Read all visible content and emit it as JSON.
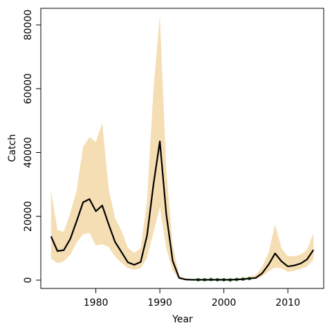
{
  "chart_data": {
    "type": "line",
    "title": "",
    "xlabel": "Year",
    "ylabel": "Catch",
    "xlim": [
      1971.4,
      2015.6
    ],
    "ylim": [
      -2600,
      85200
    ],
    "xticks": [
      1980,
      1990,
      2000,
      2010
    ],
    "yticks": [
      0,
      20000,
      40000,
      60000,
      80000
    ],
    "grid": false,
    "band_color": "#f5deb3",
    "line_color": "#000000",
    "point_color": "#2e8b2e",
    "series": [
      {
        "role": "median",
        "x": [
          1973,
          1974,
          1975,
          1976,
          1977,
          1978,
          1979,
          1980,
          1981,
          1982,
          1983,
          1984,
          1985,
          1986,
          1987,
          1988,
          1989,
          1990,
          1991,
          1992,
          1993,
          1994,
          1995,
          1996,
          1997,
          1998,
          1999,
          2000,
          2001,
          2002,
          2003,
          2004,
          2005,
          2006,
          2007,
          2008,
          2009,
          2010,
          2011,
          2012,
          2013,
          2014
        ],
        "y": [
          13700,
          9100,
          9400,
          12900,
          18500,
          24400,
          25400,
          21600,
          23400,
          17500,
          12000,
          8800,
          5600,
          4800,
          5700,
          14000,
          30000,
          43500,
          20700,
          6100,
          700,
          200,
          100,
          100,
          100,
          100,
          100,
          100,
          100,
          200,
          300,
          500,
          700,
          2200,
          4900,
          8400,
          5900,
          4300,
          4600,
          5200,
          6500,
          9500
        ]
      },
      {
        "role": "band-upper",
        "x": [
          1973,
          1974,
          1975,
          1976,
          1977,
          1978,
          1979,
          1980,
          1981,
          1982,
          1983,
          1984,
          1985,
          1986,
          1987,
          1988,
          1989,
          1990,
          1991,
          1992,
          1993,
          1994,
          1995,
          1996,
          1997,
          1998,
          1999,
          2000,
          2001,
          2002,
          2003,
          2004,
          2005,
          2006,
          2007,
          2008,
          2009,
          2010,
          2011,
          2012,
          2013,
          2014
        ],
        "y": [
          28000,
          15700,
          15200,
          21000,
          28000,
          41800,
          44800,
          43300,
          49200,
          28600,
          19500,
          15500,
          10200,
          8500,
          10000,
          25000,
          60000,
          83000,
          35000,
          11000,
          1500,
          600,
          400,
          400,
          400,
          400,
          400,
          400,
          400,
          500,
          700,
          1100,
          1600,
          4200,
          8700,
          17500,
          10000,
          7500,
          7500,
          8000,
          9500,
          14800
        ]
      },
      {
        "role": "band-lower",
        "x": [
          1973,
          1974,
          1975,
          1976,
          1977,
          1978,
          1979,
          1980,
          1981,
          1982,
          1983,
          1984,
          1985,
          1986,
          1987,
          1988,
          1989,
          1990,
          1991,
          1992,
          1993,
          1994,
          1995,
          1996,
          1997,
          1998,
          1999,
          2000,
          2001,
          2002,
          2003,
          2004,
          2005,
          2006,
          2007,
          2008,
          2009,
          2010,
          2011,
          2012,
          2013,
          2014
        ],
        "y": [
          6800,
          5300,
          5900,
          8000,
          11800,
          14400,
          14800,
          10900,
          11200,
          10400,
          7400,
          5400,
          3800,
          3300,
          3700,
          7000,
          15000,
          22800,
          10000,
          3000,
          300,
          100,
          50,
          50,
          50,
          50,
          50,
          50,
          50,
          100,
          150,
          300,
          400,
          1100,
          2800,
          3900,
          3700,
          2600,
          2900,
          3500,
          4300,
          6500
        ]
      },
      {
        "role": "observed",
        "x": [
          1996,
          1997,
          1998,
          1999,
          2000,
          2001,
          2002,
          2003,
          2004
        ],
        "y": [
          100,
          100,
          200,
          100,
          100,
          50,
          200,
          300,
          500
        ]
      }
    ]
  }
}
